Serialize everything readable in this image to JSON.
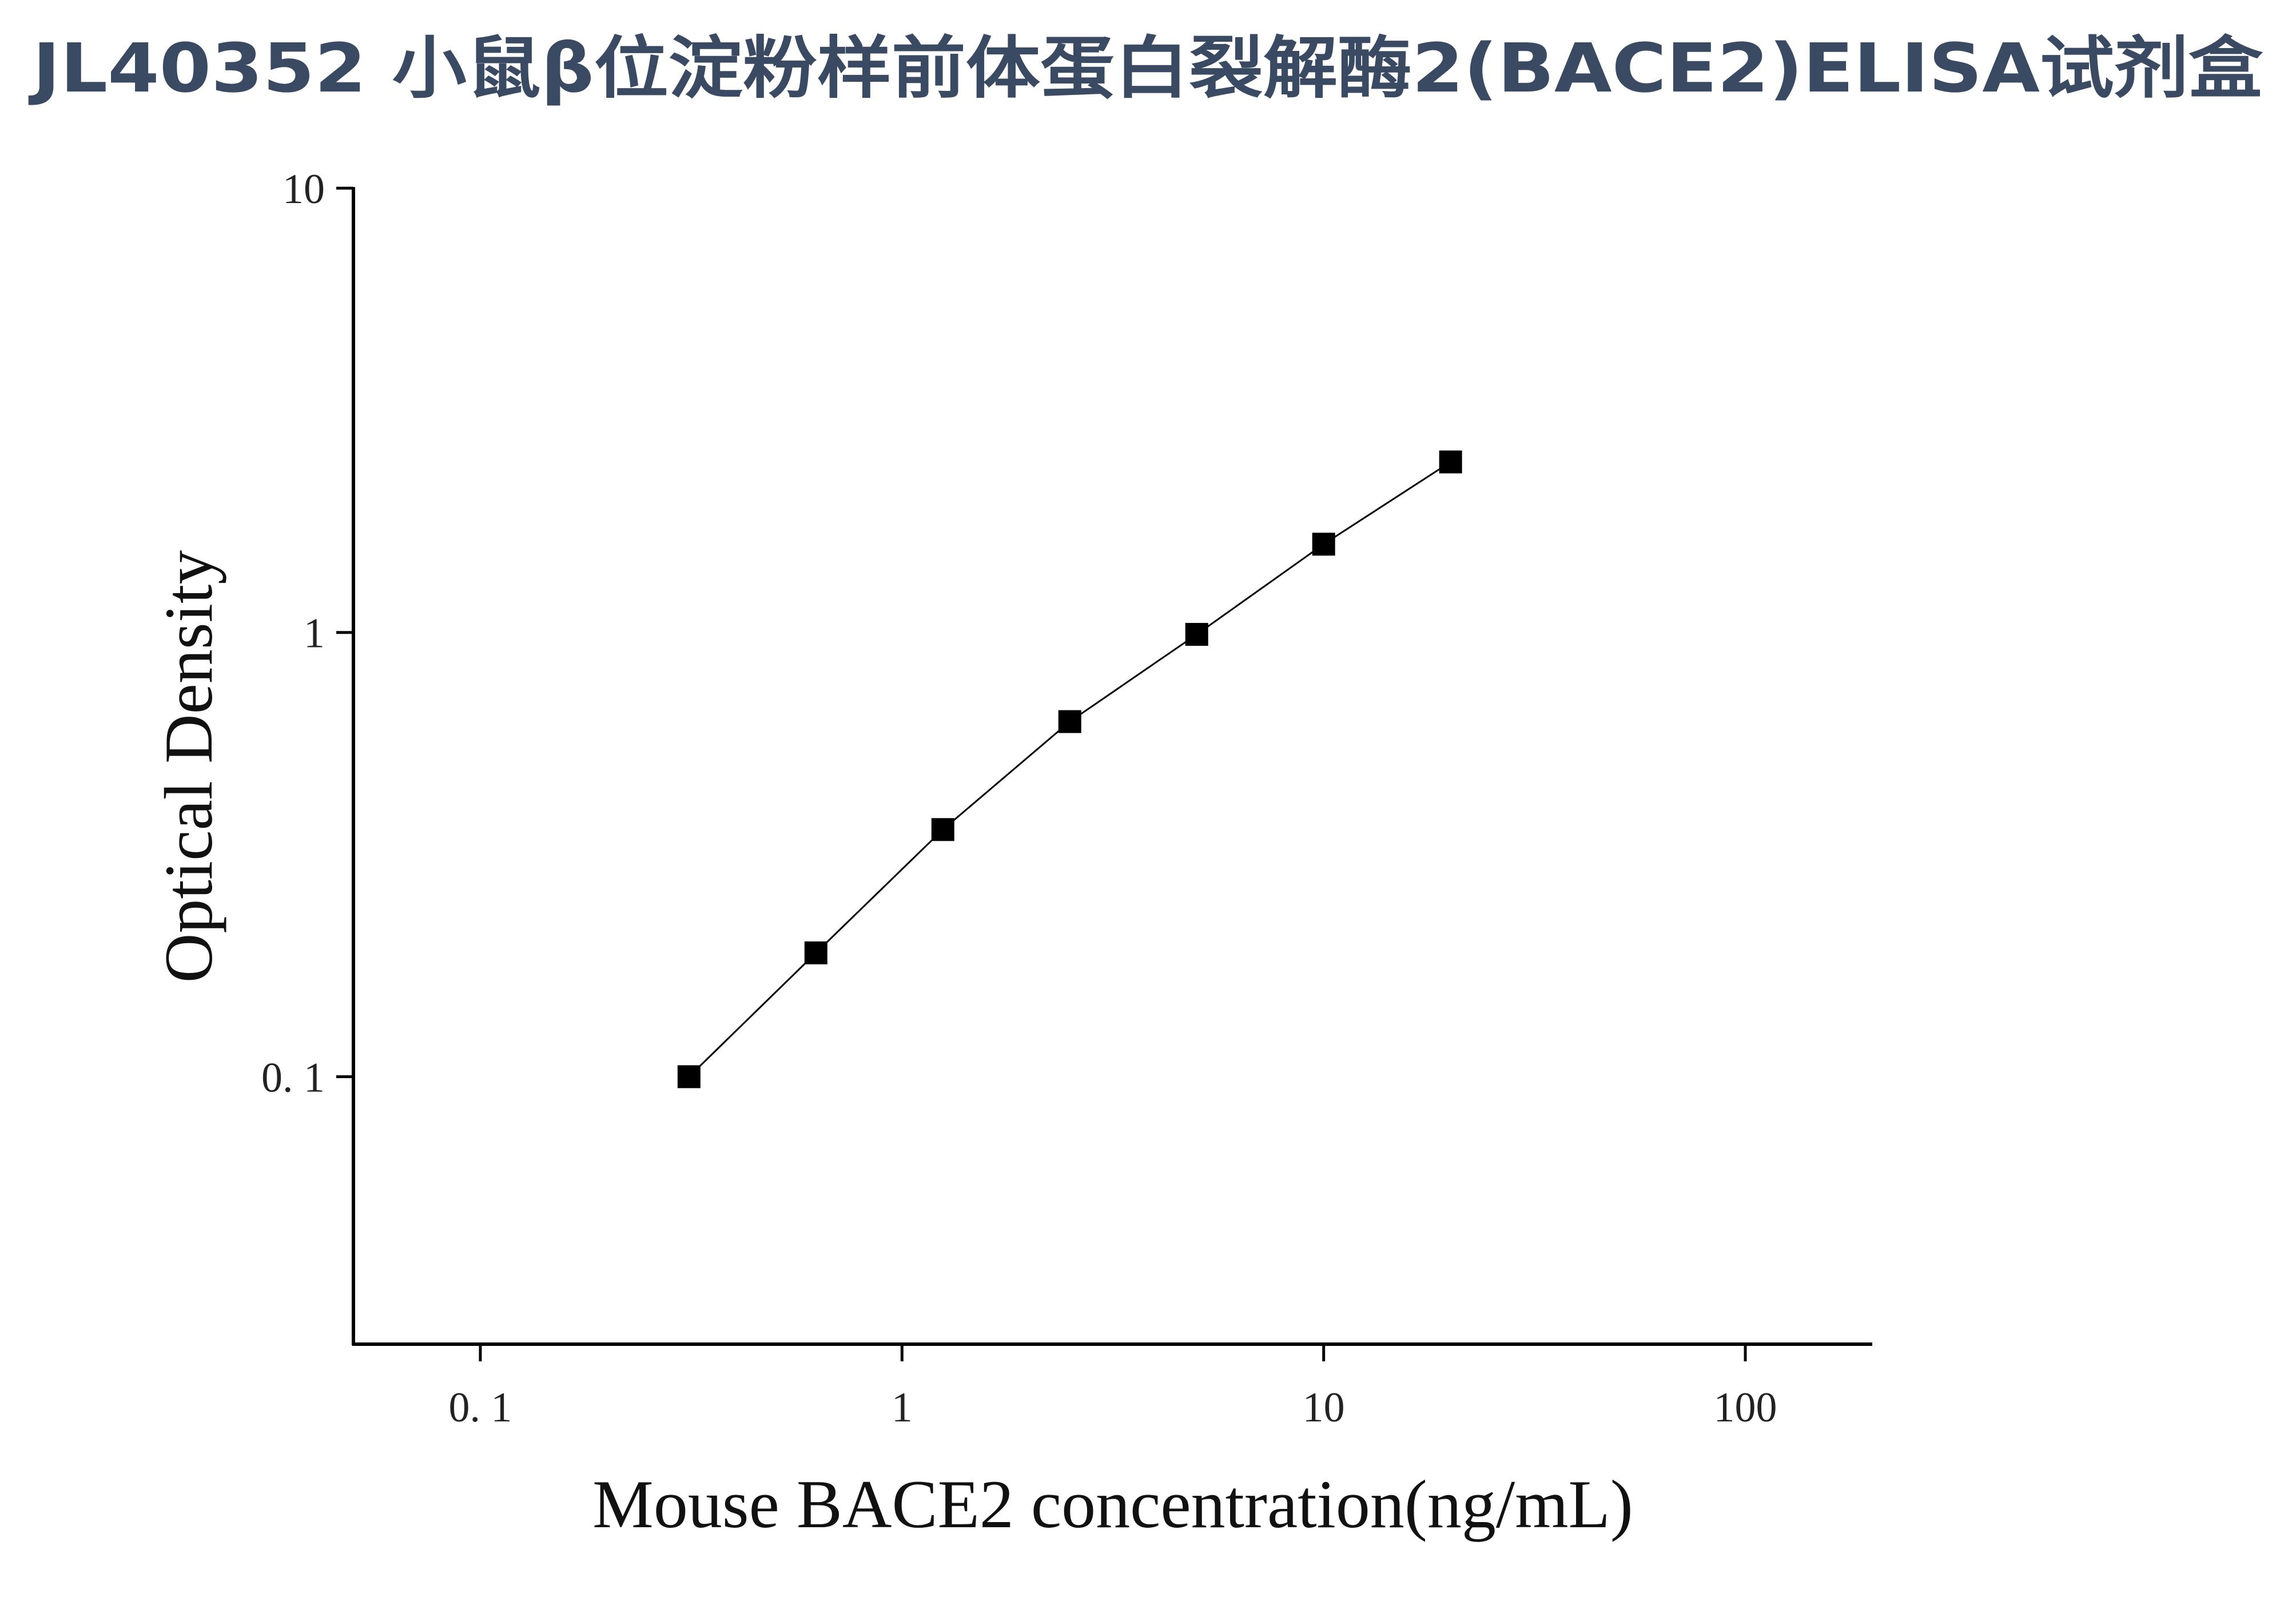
{
  "chart_data": {
    "type": "line",
    "title": "JL40352 小鼠β位淀粉样前体蛋白裂解酶2(BACE2)ELISA试剂盒",
    "x_label": "Mouse BACE2 concentration(ng/mL)",
    "y_label": "Optical Density",
    "x": [
      0.3125,
      0.625,
      1.25,
      2.5,
      5,
      10,
      20
    ],
    "series": [
      {
        "color": "#000000",
        "marker": "square",
        "values": [
          0.1,
          0.19,
          0.36,
          0.63,
          0.99,
          1.58,
          2.42
        ]
      }
    ],
    "x_scale": "log",
    "y_scale": "log",
    "xlim": [
      0.05,
      200
    ],
    "ylim": [
      0.025,
      10
    ],
    "xticks": [
      {
        "value": 0.1,
        "label": "0. 1"
      },
      1,
      10,
      100
    ],
    "yticks": [
      {
        "value": 0.1,
        "label": "0. 1"
      },
      1,
      10
    ],
    "grid": false
  }
}
